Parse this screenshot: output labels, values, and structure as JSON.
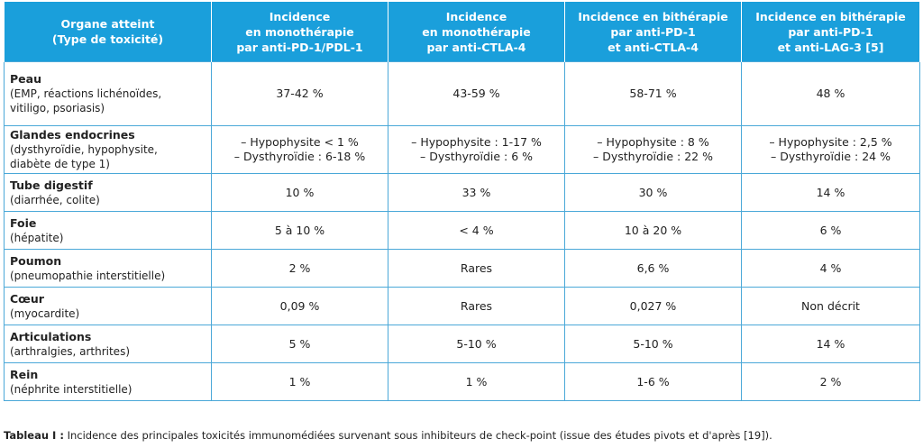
{
  "headers": [
    [
      "Organe atteint",
      "(Type de toxicité)"
    ],
    [
      "Incidence",
      "en monothérapie",
      "par anti-PD-1/PDL-1"
    ],
    [
      "Incidence",
      "en monothérapie",
      "par anti-CTLA-4"
    ],
    [
      "Incidence en bithérapie",
      "par anti-PD-1",
      "et anti-CTLA-4"
    ],
    [
      "Incidence en bithérapie",
      "par anti-PD-1",
      "et anti-LAG-3 [5]"
    ]
  ],
  "rows": [
    {
      "organ": "Peau",
      "detail": [
        "(EMP, réactions lichénoïdes,",
        "vitiligo, psoriasis)"
      ],
      "values": [
        [
          "37-42 %"
        ],
        [
          "43-59 %"
        ],
        [
          "58-71 %"
        ],
        [
          "48 %"
        ]
      ]
    },
    {
      "organ": "Glandes endocrines",
      "detail": [
        "(dysthyroïdie, hypophysite,",
        "diabète de type 1)"
      ],
      "values": [
        [
          "– Hypophysite < 1 %",
          "– Dysthyroïdie : 6-18 %"
        ],
        [
          "– Hypophysite : 1-17 %",
          "– Dysthyroïdie : 6 %"
        ],
        [
          "– Hypophysite : 8 %",
          "– Dysthyroïdie : 22 %"
        ],
        [
          "– Hypophysite : 2,5 %",
          "– Dysthyroïdie : 24 %"
        ]
      ]
    },
    {
      "organ": "Tube digestif",
      "detail": [
        "(diarrhée, colite)"
      ],
      "values": [
        [
          "10 %"
        ],
        [
          "33 %"
        ],
        [
          "30 %"
        ],
        [
          "14 %"
        ]
      ]
    },
    {
      "organ": "Foie",
      "detail": [
        "(hépatite)"
      ],
      "values": [
        [
          "5 à 10 %"
        ],
        [
          "< 4 %"
        ],
        [
          "10 à 20 %"
        ],
        [
          "6 %"
        ]
      ]
    },
    {
      "organ": "Poumon",
      "detail": [
        "(pneumopathie interstitielle)"
      ],
      "values": [
        [
          "2 %"
        ],
        [
          "Rares"
        ],
        [
          "6,6 %"
        ],
        [
          "4 %"
        ]
      ]
    },
    {
      "organ": "Cœur",
      "detail": [
        "(myocardite)"
      ],
      "values": [
        [
          "0,09 %"
        ],
        [
          "Rares"
        ],
        [
          "0,027 %"
        ],
        [
          "Non décrit"
        ]
      ]
    },
    {
      "organ": "Articulations",
      "detail": [
        "(arthralgies, arthrites)"
      ],
      "values": [
        [
          "5 %"
        ],
        [
          "5-10 %"
        ],
        [
          "5-10 %"
        ],
        [
          "14 %"
        ]
      ]
    },
    {
      "organ": "Rein",
      "detail": [
        "(néphrite interstitielle)"
      ],
      "values": [
        [
          "1 %"
        ],
        [
          "1 %"
        ],
        [
          "1-6 %"
        ],
        [
          "2 %"
        ]
      ]
    }
  ],
  "caption": {
    "label": "Tableau I :",
    "text": "Incidence des principales toxicités immunomédiées survenant sous inhibiteurs de check-point (issue des études pivots et d'après [19])."
  },
  "colors": {
    "header_bg": "#1a9fdb",
    "border": "#4aa8d8"
  }
}
